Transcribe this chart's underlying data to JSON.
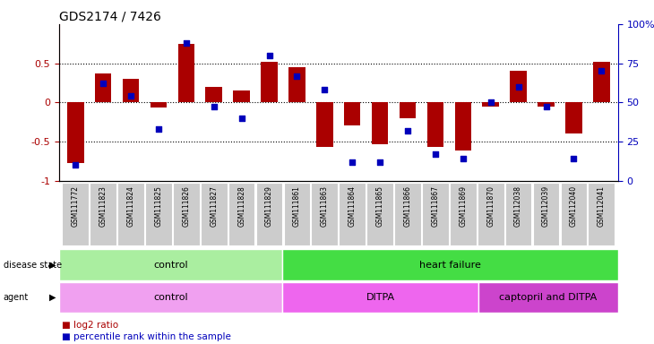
{
  "title": "GDS2174 / 7426",
  "samples": [
    "GSM111772",
    "GSM111823",
    "GSM111824",
    "GSM111825",
    "GSM111826",
    "GSM111827",
    "GSM111828",
    "GSM111829",
    "GSM111861",
    "GSM111863",
    "GSM111864",
    "GSM111865",
    "GSM111866",
    "GSM111867",
    "GSM111869",
    "GSM111870",
    "GSM112038",
    "GSM112039",
    "GSM112040",
    "GSM112041"
  ],
  "log2_ratio": [
    -0.78,
    0.37,
    0.3,
    -0.07,
    0.75,
    0.2,
    0.15,
    0.52,
    0.45,
    -0.57,
    -0.3,
    -0.54,
    -0.2,
    -0.57,
    -0.62,
    -0.06,
    0.4,
    -0.06,
    -0.4,
    0.52
  ],
  "percentile_rank": [
    10,
    62,
    54,
    33,
    88,
    47,
    40,
    80,
    67,
    58,
    12,
    12,
    32,
    17,
    14,
    50,
    60,
    47,
    14,
    70
  ],
  "disease_state_groups": [
    {
      "label": "control",
      "start": 0,
      "end": 8,
      "color": "#AAEEA0"
    },
    {
      "label": "heart failure",
      "start": 8,
      "end": 20,
      "color": "#44DD44"
    }
  ],
  "agent_groups": [
    {
      "label": "control",
      "start": 0,
      "end": 8,
      "color": "#F0A0F0"
    },
    {
      "label": "DITPA",
      "start": 8,
      "end": 15,
      "color": "#EE66EE"
    },
    {
      "label": "captopril and DITPA",
      "start": 15,
      "end": 20,
      "color": "#CC44CC"
    }
  ],
  "bar_color": "#AA0000",
  "dot_color": "#0000BB",
  "ylim": [
    -1,
    1
  ],
  "y2lim": [
    0,
    100
  ],
  "yticks": [
    -1,
    -0.5,
    0,
    0.5
  ],
  "y2ticks": [
    0,
    25,
    50,
    75,
    100
  ],
  "background_color": "white",
  "tick_bg": "#CCCCCC"
}
